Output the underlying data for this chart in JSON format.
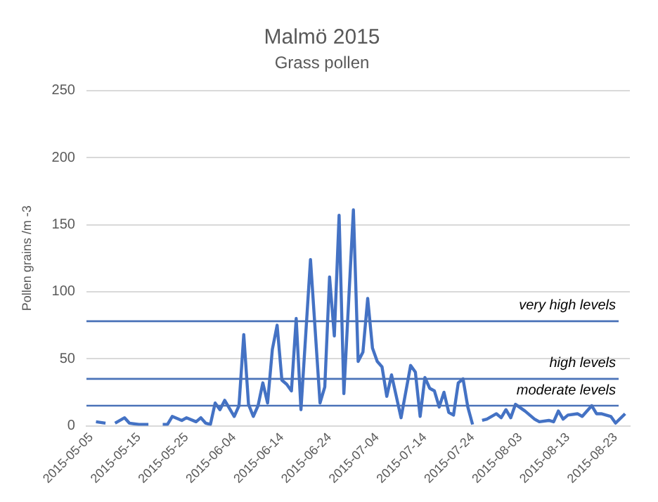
{
  "chart_data": {
    "type": "line",
    "title": "Malmö 2015",
    "subtitle": "Grass pollen",
    "ylabel": "Pollen grains /m -3",
    "x": [
      "2015-05-06",
      "2015-05-08",
      "2015-05-09",
      "2015-05-10",
      "2015-05-12",
      "2015-05-13",
      "2015-05-15",
      "2015-05-17",
      "2015-05-18",
      "2015-05-20",
      "2015-05-21",
      "2015-05-22",
      "2015-05-24",
      "2015-05-25",
      "2015-05-27",
      "2015-05-28",
      "2015-05-29",
      "2015-05-30",
      "2015-05-31",
      "2015-06-01",
      "2015-06-02",
      "2015-06-04",
      "2015-06-05",
      "2015-06-06",
      "2015-06-07",
      "2015-06-08",
      "2015-06-09",
      "2015-06-10",
      "2015-06-11",
      "2015-06-12",
      "2015-06-13",
      "2015-06-14",
      "2015-06-15",
      "2015-06-16",
      "2015-06-17",
      "2015-06-18",
      "2015-06-20",
      "2015-06-22",
      "2015-06-23",
      "2015-06-24",
      "2015-06-25",
      "2015-06-26",
      "2015-06-27",
      "2015-06-29",
      "2015-06-30",
      "2015-07-01",
      "2015-07-02",
      "2015-07-03",
      "2015-07-04",
      "2015-07-05",
      "2015-07-06",
      "2015-07-07",
      "2015-07-09",
      "2015-07-11",
      "2015-07-12",
      "2015-07-13",
      "2015-07-14",
      "2015-07-15",
      "2015-07-16",
      "2015-07-17",
      "2015-07-18",
      "2015-07-19",
      "2015-07-20",
      "2015-07-21",
      "2015-07-22",
      "2015-07-23",
      "2015-07-24",
      "2015-07-25",
      "2015-07-26",
      "2015-07-27",
      "2015-07-29",
      "2015-07-30",
      "2015-07-31",
      "2015-08-01",
      "2015-08-02",
      "2015-08-04",
      "2015-08-06",
      "2015-08-07",
      "2015-08-09",
      "2015-08-10",
      "2015-08-11",
      "2015-08-12",
      "2015-08-13",
      "2015-08-15",
      "2015-08-16",
      "2015-08-18",
      "2015-08-19",
      "2015-08-20",
      "2015-08-22",
      "2015-08-23",
      "2015-08-25"
    ],
    "series": [
      {
        "color": "#4472c4",
        "values": [
          3,
          2,
          null,
          2,
          6,
          2,
          1,
          1,
          null,
          1,
          1,
          7,
          4,
          6,
          3,
          6,
          2,
          1,
          17,
          12,
          19,
          7,
          15,
          68,
          16,
          7,
          15,
          32,
          17,
          57,
          75,
          34,
          31,
          26,
          80,
          12,
          124,
          17,
          29,
          111,
          67,
          157,
          24,
          161,
          48,
          55,
          95,
          58,
          48,
          44,
          22,
          38,
          6,
          45,
          40,
          7,
          36,
          28,
          26,
          14,
          25,
          10,
          8,
          32,
          35,
          14,
          1,
          null,
          4,
          5,
          9,
          6,
          12,
          6,
          16,
          11,
          5,
          3,
          4,
          3,
          11,
          5,
          8,
          9,
          7,
          15,
          9,
          9,
          7,
          2,
          9
        ]
      }
    ],
    "xlim": [
      "2015-05-04",
      "2015-08-26"
    ],
    "xticks": [
      "2015-05-05",
      "2015-05-15",
      "2015-05-25",
      "2015-06-04",
      "2015-06-14",
      "2015-06-24",
      "2015-07-04",
      "2015-07-14",
      "2015-07-24",
      "2015-08-03",
      "2015-08-13",
      "2015-08-23"
    ],
    "ylim": [
      0,
      250
    ],
    "yticks": [
      0,
      50,
      100,
      150,
      200,
      250
    ],
    "grid": "y",
    "legend": false,
    "marker": "none",
    "line_style": "solid",
    "ref_lines": [
      {
        "axis": "y",
        "value": 78,
        "label": "very high levels",
        "color": "#4a72b8"
      },
      {
        "axis": "y",
        "value": 35,
        "label": "high levels",
        "color": "#4a72b8"
      },
      {
        "axis": "y",
        "value": 15,
        "label": "moderate levels",
        "color": "#4a72b8"
      }
    ]
  }
}
